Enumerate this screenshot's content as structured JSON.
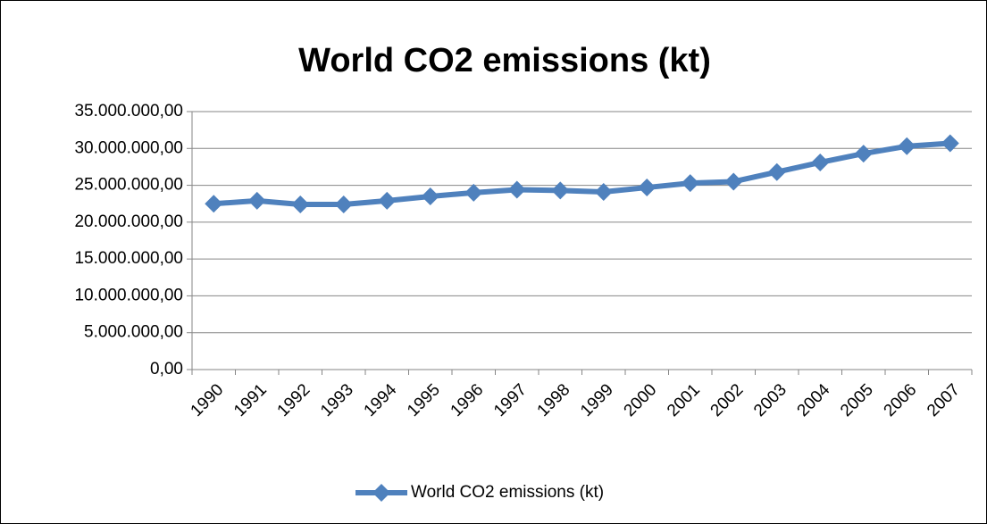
{
  "chart_data": {
    "type": "line",
    "title": "World CO2 emissions (kt)",
    "categories": [
      "1990",
      "1991",
      "1992",
      "1993",
      "1994",
      "1995",
      "1996",
      "1997",
      "1998",
      "1999",
      "2000",
      "2001",
      "2002",
      "2003",
      "2004",
      "2005",
      "2006",
      "2007"
    ],
    "series": [
      {
        "name": "World CO2 emissions (kt)",
        "color": "#4f81bd",
        "values": [
          22500000,
          22900000,
          22400000,
          22400000,
          22900000,
          23500000,
          24000000,
          24400000,
          24300000,
          24100000,
          24700000,
          25300000,
          25500000,
          26800000,
          28100000,
          29300000,
          30300000,
          30700000
        ]
      }
    ],
    "ylim": [
      0,
      35000000
    ],
    "yticks": [
      {
        "value": 0,
        "label": "0,00"
      },
      {
        "value": 5000000,
        "label": "5.000.000,00"
      },
      {
        "value": 10000000,
        "label": "10.000.000,00"
      },
      {
        "value": 15000000,
        "label": "15.000.000,00"
      },
      {
        "value": 20000000,
        "label": "20.000.000,00"
      },
      {
        "value": 25000000,
        "label": "25.000.000,00"
      },
      {
        "value": 30000000,
        "label": "30.000.000,00"
      },
      {
        "value": 35000000,
        "label": "35.000.000,00"
      }
    ],
    "grid": true,
    "legend": "bottom"
  }
}
